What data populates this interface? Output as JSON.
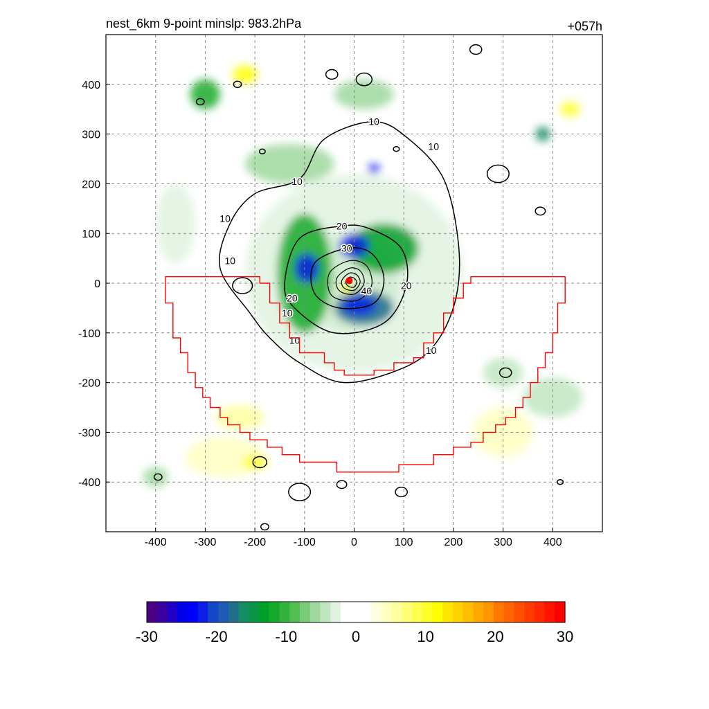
{
  "chart_data": {
    "type": "heatmap",
    "title": "nest_6km  9-point minslp: 983.2hPa",
    "time_label": "+057h",
    "xlim": [
      -500,
      500
    ],
    "ylim": [
      -500,
      500
    ],
    "x_ticks": [
      -400,
      -300,
      -200,
      -100,
      0,
      100,
      200,
      300,
      400
    ],
    "y_ticks": [
      400,
      300,
      200,
      100,
      0,
      -100,
      -200,
      -300,
      -400
    ],
    "x_tick_labels": [
      "-400",
      "-300",
      "-200",
      "-100",
      "0",
      "100",
      "200",
      "300",
      "400"
    ],
    "y_tick_labels": [
      "400",
      "300",
      "200",
      "100",
      "0",
      "-100",
      "-200",
      "-300",
      "-400"
    ],
    "grid": true,
    "center_marker": {
      "x": -10,
      "y": 5,
      "color": "#ff0000"
    },
    "contour_labels": [
      {
        "text": "10",
        "x": 40,
        "y": 325
      },
      {
        "text": "10",
        "x": 160,
        "y": 275
      },
      {
        "text": "10",
        "x": -115,
        "y": 205
      },
      {
        "text": "10",
        "x": -260,
        "y": 130
      },
      {
        "text": "10",
        "x": -250,
        "y": 45
      },
      {
        "text": "10",
        "x": -135,
        "y": -60
      },
      {
        "text": "10",
        "x": -120,
        "y": -115
      },
      {
        "text": "10",
        "x": 155,
        "y": -135
      },
      {
        "text": "20",
        "x": -25,
        "y": 115
      },
      {
        "text": "20",
        "x": 105,
        "y": -5
      },
      {
        "text": "20",
        "x": -125,
        "y": -30
      },
      {
        "text": "30",
        "x": -15,
        "y": 70
      },
      {
        "text": "40",
        "x": 25,
        "y": -15
      }
    ],
    "colorbar": {
      "min": -30,
      "max": 30,
      "tick_values": [
        -30,
        -20,
        -10,
        0,
        10,
        20,
        30
      ],
      "tick_labels": [
        "-30",
        "-20",
        "-10",
        "0",
        "10",
        "20",
        "30"
      ],
      "colors": [
        "#4b0082",
        "#3a00a0",
        "#2000c8",
        "#0000e6",
        "#0000ff",
        "#0a1ee6",
        "#1446c8",
        "#1e5ab4",
        "#1e6e8c",
        "#148c64",
        "#0a9646",
        "#00a028",
        "#14aa28",
        "#32b43c",
        "#50be50",
        "#78cc78",
        "#9ed89e",
        "#c0e6c0",
        "#e0f2e0",
        "#ffffff",
        "#ffffff",
        "#ffffff",
        "#ffffe0",
        "#ffffc0",
        "#ffffa0",
        "#ffff78",
        "#ffff50",
        "#ffff28",
        "#ffff00",
        "#ffe600",
        "#ffd200",
        "#ffbe00",
        "#ffaa00",
        "#ff9600",
        "#ff7800",
        "#ff6400",
        "#ff5000",
        "#ff3c00",
        "#ff2800",
        "#ff1400",
        "#ff0000"
      ]
    },
    "field_blobs": [
      {
        "x": -10,
        "y": 0,
        "rx": 100,
        "ry": 95,
        "v": -8
      },
      {
        "x": 0,
        "y": 20,
        "rx": 220,
        "ry": 200,
        "v": -3
      },
      {
        "x": -100,
        "y": 20,
        "rx": 55,
        "ry": 120,
        "v": -12
      },
      {
        "x": 60,
        "y": 70,
        "rx": 70,
        "ry": 50,
        "v": -13
      },
      {
        "x": 20,
        "y": -50,
        "rx": 60,
        "ry": 35,
        "v": -18
      },
      {
        "x": -95,
        "y": 30,
        "rx": 25,
        "ry": 30,
        "v": -22
      },
      {
        "x": 0,
        "y": 75,
        "rx": 30,
        "ry": 25,
        "v": -22
      },
      {
        "x": 10,
        "y": -45,
        "rx": 35,
        "ry": 20,
        "v": -22
      },
      {
        "x": -15,
        "y": -10,
        "rx": 12,
        "ry": 12,
        "v": 12
      },
      {
        "x": 40,
        "y": 230,
        "rx": 12,
        "ry": 10,
        "v": -22
      },
      {
        "x": -130,
        "y": 240,
        "rx": 90,
        "ry": 40,
        "v": -6
      },
      {
        "x": 20,
        "y": 380,
        "rx": 60,
        "ry": 30,
        "v": -6
      },
      {
        "x": -300,
        "y": 380,
        "rx": 30,
        "ry": 30,
        "v": -12
      },
      {
        "x": 380,
        "y": 300,
        "rx": 15,
        "ry": 15,
        "v": -16
      },
      {
        "x": -220,
        "y": 420,
        "rx": 25,
        "ry": 18,
        "v": 12
      },
      {
        "x": 435,
        "y": 350,
        "rx": 20,
        "ry": 15,
        "v": 10
      },
      {
        "x": -260,
        "y": -350,
        "rx": 80,
        "ry": 40,
        "v": 4
      },
      {
        "x": 300,
        "y": -300,
        "rx": 60,
        "ry": 50,
        "v": 5
      },
      {
        "x": -400,
        "y": -390,
        "rx": 25,
        "ry": 20,
        "v": -6
      },
      {
        "x": -200,
        "y": -360,
        "rx": 25,
        "ry": 15,
        "v": 10
      },
      {
        "x": -360,
        "y": 120,
        "rx": 40,
        "ry": 80,
        "v": -3
      },
      {
        "x": 300,
        "y": -180,
        "rx": 40,
        "ry": 30,
        "v": -5
      },
      {
        "x": 400,
        "y": -230,
        "rx": 60,
        "ry": 40,
        "v": -4
      },
      {
        "x": -230,
        "y": -270,
        "rx": 50,
        "ry": 25,
        "v": 6
      }
    ],
    "contours": {
      "closed": [
        {
          "level": 10,
          "pts": [
            [
              40,
              325
            ],
            [
              -60,
              290
            ],
            [
              -110,
              210
            ],
            [
              -200,
              180
            ],
            [
              -250,
              120
            ],
            [
              -270,
              30
            ],
            [
              -210,
              -60
            ],
            [
              -170,
              -110
            ],
            [
              -110,
              -160
            ],
            [
              -20,
              -200
            ],
            [
              100,
              -170
            ],
            [
              165,
              -120
            ],
            [
              205,
              -30
            ],
            [
              210,
              80
            ],
            [
              180,
              210
            ],
            [
              110,
              290
            ]
          ]
        },
        {
          "level": 20,
          "pts": [
            [
              -25,
              115
            ],
            [
              -110,
              90
            ],
            [
              -140,
              0
            ],
            [
              -120,
              -50
            ],
            [
              -40,
              -100
            ],
            [
              60,
              -80
            ],
            [
              105,
              -5
            ],
            [
              95,
              70
            ],
            [
              30,
              110
            ]
          ]
        },
        {
          "level": 30,
          "pts": [
            [
              -15,
              70
            ],
            [
              -80,
              40
            ],
            [
              -80,
              -20
            ],
            [
              -30,
              -50
            ],
            [
              40,
              -40
            ],
            [
              60,
              10
            ],
            [
              35,
              60
            ]
          ]
        },
        {
          "level": 40,
          "pts": [
            [
              -10,
              45
            ],
            [
              -50,
              20
            ],
            [
              -45,
              -25
            ],
            [
              5,
              -35
            ],
            [
              35,
              -5
            ],
            [
              25,
              35
            ]
          ]
        },
        {
          "level": 50,
          "pts": [
            [
              -10,
              30
            ],
            [
              -35,
              10
            ],
            [
              -30,
              -15
            ],
            [
              0,
              -22
            ],
            [
              20,
              0
            ],
            [
              12,
              25
            ]
          ]
        },
        {
          "level": 60,
          "pts": [
            [
              -10,
              20
            ],
            [
              -25,
              5
            ],
            [
              -20,
              -10
            ],
            [
              0,
              -14
            ],
            [
              12,
              2
            ],
            [
              5,
              17
            ]
          ]
        },
        {
          "level": 70,
          "pts": [
            [
              -10,
              12
            ],
            [
              -17,
              3
            ],
            [
              -12,
              -6
            ],
            [
              0,
              -8
            ],
            [
              5,
              2
            ],
            [
              0,
              10
            ]
          ]
        }
      ],
      "islands": [
        {
          "x": -45,
          "y": 420,
          "r": 12
        },
        {
          "x": 20,
          "y": 410,
          "r": 16
        },
        {
          "x": 245,
          "y": 470,
          "r": 12
        },
        {
          "x": 290,
          "y": 220,
          "r": 22
        },
        {
          "x": 375,
          "y": 145,
          "r": 10
        },
        {
          "x": -225,
          "y": -5,
          "r": 20
        },
        {
          "x": 305,
          "y": -180,
          "r": 12
        },
        {
          "x": -190,
          "y": -360,
          "r": 14
        },
        {
          "x": -110,
          "y": -420,
          "r": 22
        },
        {
          "x": -25,
          "y": -405,
          "r": 10
        },
        {
          "x": 95,
          "y": -420,
          "r": 12
        },
        {
          "x": 415,
          "y": -400,
          "r": 6
        },
        {
          "x": -395,
          "y": -390,
          "r": 8
        },
        {
          "x": -310,
          "y": 365,
          "r": 8
        },
        {
          "x": -235,
          "y": 400,
          "r": 8
        },
        {
          "x": -185,
          "y": 265,
          "r": 6
        },
        {
          "x": 85,
          "y": 270,
          "r": 6
        },
        {
          "x": -180,
          "y": -490,
          "r": 8
        }
      ]
    },
    "polygon_outline": {
      "color": "#ff0000",
      "pts": [
        [
          -380,
          13
        ],
        [
          -190,
          13
        ],
        [
          -190,
          0
        ],
        [
          -170,
          0
        ],
        [
          -170,
          -40
        ],
        [
          -150,
          -40
        ],
        [
          -150,
          -80
        ],
        [
          -130,
          -80
        ],
        [
          -130,
          -110
        ],
        [
          -110,
          -110
        ],
        [
          -110,
          -140
        ],
        [
          -60,
          -140
        ],
        [
          -60,
          -160
        ],
        [
          -40,
          -160
        ],
        [
          -40,
          -175
        ],
        [
          -20,
          -175
        ],
        [
          -20,
          -185
        ],
        [
          40,
          -185
        ],
        [
          40,
          -175
        ],
        [
          80,
          -175
        ],
        [
          80,
          -160
        ],
        [
          120,
          -160
        ],
        [
          120,
          -150
        ],
        [
          140,
          -150
        ],
        [
          140,
          -120
        ],
        [
          160,
          -120
        ],
        [
          160,
          -100
        ],
        [
          180,
          -100
        ],
        [
          180,
          -60
        ],
        [
          200,
          -60
        ],
        [
          200,
          -30
        ],
        [
          220,
          -30
        ],
        [
          220,
          0
        ],
        [
          235,
          0
        ],
        [
          235,
          13
        ],
        [
          425,
          13
        ],
        [
          425,
          -40
        ],
        [
          410,
          -40
        ],
        [
          410,
          -100
        ],
        [
          400,
          -100
        ],
        [
          400,
          -140
        ],
        [
          385,
          -140
        ],
        [
          385,
          -170
        ],
        [
          370,
          -170
        ],
        [
          370,
          -200
        ],
        [
          355,
          -200
        ],
        [
          355,
          -230
        ],
        [
          340,
          -230
        ],
        [
          340,
          -250
        ],
        [
          325,
          -250
        ],
        [
          325,
          -270
        ],
        [
          305,
          -270
        ],
        [
          305,
          -285
        ],
        [
          285,
          -285
        ],
        [
          285,
          -300
        ],
        [
          260,
          -300
        ],
        [
          260,
          -320
        ],
        [
          235,
          -320
        ],
        [
          235,
          -330
        ],
        [
          200,
          -330
        ],
        [
          200,
          -345
        ],
        [
          160,
          -345
        ],
        [
          160,
          -365
        ],
        [
          90,
          -365
        ],
        [
          90,
          -380
        ],
        [
          -35,
          -380
        ],
        [
          -35,
          -360
        ],
        [
          -110,
          -360
        ],
        [
          -110,
          -345
        ],
        [
          -145,
          -345
        ],
        [
          -145,
          -330
        ],
        [
          -175,
          -330
        ],
        [
          -175,
          -315
        ],
        [
          -210,
          -315
        ],
        [
          -210,
          -300
        ],
        [
          -230,
          -300
        ],
        [
          -230,
          -285
        ],
        [
          -255,
          -285
        ],
        [
          -255,
          -270
        ],
        [
          -270,
          -270
        ],
        [
          -270,
          -250
        ],
        [
          -290,
          -250
        ],
        [
          -290,
          -230
        ],
        [
          -305,
          -230
        ],
        [
          -305,
          -210
        ],
        [
          -320,
          -210
        ],
        [
          -320,
          -180
        ],
        [
          -335,
          -180
        ],
        [
          -335,
          -140
        ],
        [
          -350,
          -140
        ],
        [
          -350,
          -110
        ],
        [
          -365,
          -110
        ],
        [
          -365,
          -40
        ],
        [
          -380,
          -40
        ]
      ]
    }
  }
}
